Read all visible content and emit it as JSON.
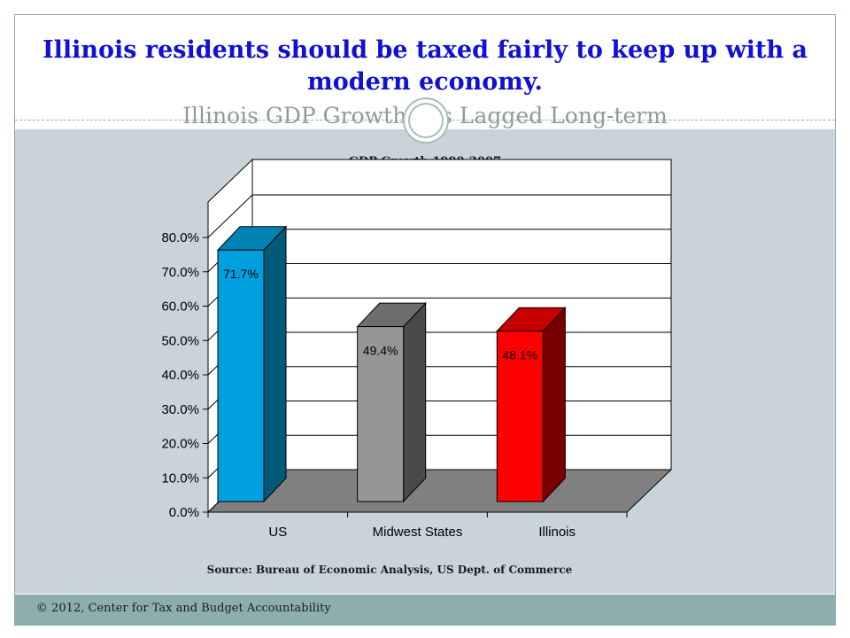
{
  "slide": {
    "title": "Illinois residents should be taxed fairly to keep up with a modern economy.",
    "subtitle": "Illinois GDP  Growth has Lagged Long-term",
    "footer": "© 2012, Center for Tax and Budget Accountability"
  },
  "chart_data": {
    "type": "bar",
    "title": "GDP Growth 1990-2007",
    "categories": [
      "US",
      "Midwest States",
      "Illinois"
    ],
    "values": [
      71.7,
      49.4,
      48.1
    ],
    "value_labels": [
      "71.7%",
      "49.4%",
      "48.1%"
    ],
    "ylim": [
      0,
      80
    ],
    "yticks": [
      0,
      10,
      20,
      30,
      40,
      50,
      60,
      70,
      80
    ],
    "ytick_labels": [
      "0.0%",
      "10.0%",
      "20.0%",
      "30.0%",
      "40.0%",
      "50.0%",
      "60.0%",
      "70.0%",
      "80.0%"
    ],
    "three_d": true,
    "grid": true,
    "bar_colors": [
      {
        "front": "#00a0e0",
        "side": "#005a78",
        "top": "#0082b4"
      },
      {
        "front": "#969696",
        "side": "#4a4a4a",
        "top": "#6e6e6e"
      },
      {
        "front": "#ff0000",
        "side": "#7a0000",
        "top": "#c80000"
      }
    ],
    "source": "Source: Bureau of Economic Analysis, US Dept. of Commerce"
  }
}
